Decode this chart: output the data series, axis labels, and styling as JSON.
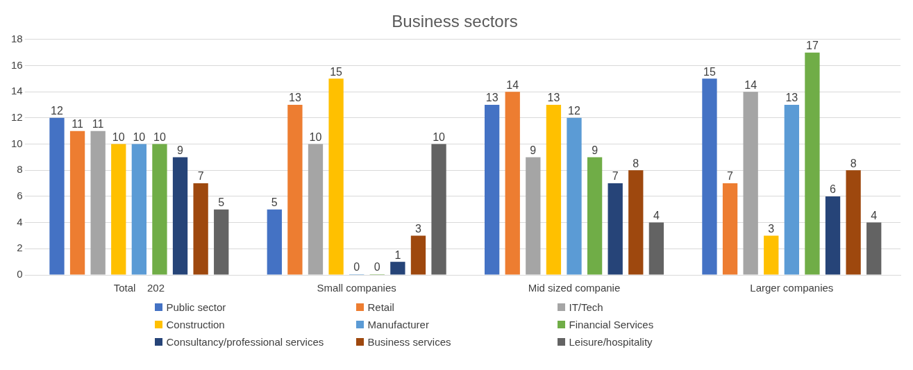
{
  "chart_data": {
    "type": "bar",
    "title": "Business sectors",
    "categories": [
      "Total    202",
      "Small companies",
      "Mid sized companie",
      "Larger companies"
    ],
    "series": [
      {
        "name": "Public sector",
        "color": "#4472c4",
        "values": [
          12,
          5,
          13,
          15
        ]
      },
      {
        "name": "Retail",
        "color": "#ed7d31",
        "values": [
          11,
          13,
          14,
          7
        ]
      },
      {
        "name": "IT/Tech",
        "color": "#a5a5a5",
        "values": [
          11,
          10,
          9,
          14
        ]
      },
      {
        "name": "Construction",
        "color": "#ffc000",
        "values": [
          10,
          15,
          13,
          3
        ]
      },
      {
        "name": "Manufacturer",
        "color": "#5b9bd5",
        "values": [
          10,
          0,
          12,
          13
        ]
      },
      {
        "name": "Financial Services",
        "color": "#70ad47",
        "values": [
          10,
          0,
          9,
          17
        ]
      },
      {
        "name": "Consultancy/professional services",
        "color": "#264478",
        "values": [
          9,
          1,
          7,
          6
        ]
      },
      {
        "name": "Business services",
        "color": "#9e480e",
        "values": [
          7,
          3,
          8,
          8
        ]
      },
      {
        "name": "Leisure/hospitality",
        "color": "#636363",
        "values": [
          5,
          10,
          4,
          4
        ]
      }
    ],
    "ylim": [
      0,
      18
    ],
    "yticks": [
      0,
      2,
      4,
      6,
      8,
      10,
      12,
      14,
      16,
      18
    ],
    "grid": "y",
    "legend": "bottom",
    "data_labels": true
  }
}
